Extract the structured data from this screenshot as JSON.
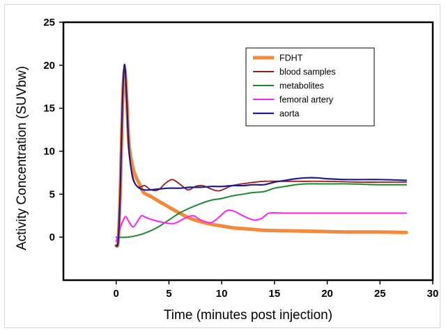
{
  "chart_data": {
    "type": "line",
    "title": "",
    "xlabel": "Time (minutes post injection)",
    "ylabel": "Activity Concentration (SUVbw)",
    "xlim": [
      -5,
      30
    ],
    "ylim": [
      -5,
      25
    ],
    "x_ticks": [
      0,
      5,
      10,
      15,
      20,
      25,
      30
    ],
    "y_ticks": [
      0,
      5,
      10,
      15,
      20,
      25
    ],
    "grid": false,
    "legend_position": "top-right",
    "series": [
      {
        "name": "FDHT",
        "color": "#f4893c",
        "width": 5,
        "points": [
          [
            0,
            -1
          ],
          [
            0.2,
            -0.3
          ],
          [
            0.4,
            6
          ],
          [
            0.6,
            15.5
          ],
          [
            0.8,
            19.5
          ],
          [
            1.0,
            16
          ],
          [
            1.2,
            11
          ],
          [
            1.5,
            8.5
          ],
          [
            1.8,
            7.2
          ],
          [
            2.2,
            6.2
          ],
          [
            2.6,
            5.2
          ],
          [
            3.2,
            4.8
          ],
          [
            4,
            4.2
          ],
          [
            5,
            3.5
          ],
          [
            6,
            2.8
          ],
          [
            7,
            2.2
          ],
          [
            8,
            1.8
          ],
          [
            9,
            1.5
          ],
          [
            10,
            1.3
          ],
          [
            11,
            1.1
          ],
          [
            12,
            1.0
          ],
          [
            13,
            0.9
          ],
          [
            14,
            0.8
          ],
          [
            16,
            0.75
          ],
          [
            18,
            0.7
          ],
          [
            20,
            0.65
          ],
          [
            22,
            0.6
          ],
          [
            25,
            0.6
          ],
          [
            27.5,
            0.55
          ]
        ]
      },
      {
        "name": "blood samples",
        "color": "#9b1b1b",
        "width": 1.8,
        "points": [
          [
            0,
            -1
          ],
          [
            0.2,
            -0.3
          ],
          [
            0.4,
            6
          ],
          [
            0.6,
            16
          ],
          [
            0.8,
            20
          ],
          [
            1.0,
            15.5
          ],
          [
            1.2,
            10
          ],
          [
            1.5,
            7.5
          ],
          [
            1.8,
            6.2
          ],
          [
            2.2,
            5.8
          ],
          [
            2.7,
            6.0
          ],
          [
            3.3,
            5.5
          ],
          [
            4,
            5.5
          ],
          [
            4.6,
            6.2
          ],
          [
            5.3,
            6.7
          ],
          [
            6,
            6.2
          ],
          [
            6.8,
            5.5
          ],
          [
            7.5,
            5.9
          ],
          [
            8.2,
            6.0
          ],
          [
            9,
            5.6
          ],
          [
            9.8,
            5.4
          ],
          [
            11,
            6.0
          ],
          [
            12.5,
            6.3
          ],
          [
            14,
            6.5
          ],
          [
            16,
            6.5
          ],
          [
            18,
            6.5
          ],
          [
            20,
            6.5
          ],
          [
            23,
            6.4
          ],
          [
            25,
            6.4
          ],
          [
            27.5,
            6.4
          ]
        ]
      },
      {
        "name": "metabolites",
        "color": "#1a8a2a",
        "width": 2,
        "points": [
          [
            0,
            0
          ],
          [
            1,
            0
          ],
          [
            2,
            0.2
          ],
          [
            3,
            0.6
          ],
          [
            4,
            1.2
          ],
          [
            5,
            2.0
          ],
          [
            6,
            2.8
          ],
          [
            7,
            3.4
          ],
          [
            8,
            3.9
          ],
          [
            9,
            4.3
          ],
          [
            10,
            4.5
          ],
          [
            11,
            4.8
          ],
          [
            12,
            5.0
          ],
          [
            13,
            5.2
          ],
          [
            14,
            5.3
          ],
          [
            15,
            5.7
          ],
          [
            16,
            5.9
          ],
          [
            17,
            6.1
          ],
          [
            18,
            6.2
          ],
          [
            20,
            6.2
          ],
          [
            22,
            6.2
          ],
          [
            25,
            6.1
          ],
          [
            27.5,
            6.1
          ]
        ]
      },
      {
        "name": "femoral artery",
        "color": "#ff22ff",
        "width": 2,
        "points": [
          [
            0,
            -0.5
          ],
          [
            0.3,
            0.8
          ],
          [
            0.6,
            1.8
          ],
          [
            0.9,
            2.4
          ],
          [
            1.2,
            1.8
          ],
          [
            1.6,
            1.2
          ],
          [
            2.0,
            1.8
          ],
          [
            2.4,
            2.5
          ],
          [
            2.8,
            2.3
          ],
          [
            3.5,
            2.0
          ],
          [
            4.5,
            1.7
          ],
          [
            5.5,
            1.6
          ],
          [
            6.5,
            2.2
          ],
          [
            7.3,
            2.5
          ],
          [
            8,
            2.0
          ],
          [
            9,
            1.7
          ],
          [
            9.8,
            2.4
          ],
          [
            10.5,
            3.1
          ],
          [
            11.2,
            3.0
          ],
          [
            12,
            2.5
          ],
          [
            13,
            2.0
          ],
          [
            13.8,
            2.2
          ],
          [
            14.5,
            2.8
          ],
          [
            16,
            2.8
          ],
          [
            20,
            2.8
          ],
          [
            25,
            2.8
          ],
          [
            27.5,
            2.8
          ]
        ]
      },
      {
        "name": "aorta",
        "color": "#1c1c8c",
        "width": 2.2,
        "points": [
          [
            0,
            -1
          ],
          [
            0.2,
            -0.3
          ],
          [
            0.4,
            6
          ],
          [
            0.6,
            16
          ],
          [
            0.8,
            20.1
          ],
          [
            1.0,
            16
          ],
          [
            1.2,
            10.5
          ],
          [
            1.5,
            7.3
          ],
          [
            1.8,
            6.2
          ],
          [
            2.2,
            5.7
          ],
          [
            2.6,
            5.5
          ],
          [
            3.2,
            5.5
          ],
          [
            4,
            5.6
          ],
          [
            5,
            5.7
          ],
          [
            6,
            5.7
          ],
          [
            7,
            5.8
          ],
          [
            8,
            5.8
          ],
          [
            9,
            5.9
          ],
          [
            10,
            5.9
          ],
          [
            11,
            6.0
          ],
          [
            12,
            6.0
          ],
          [
            13,
            6.1
          ],
          [
            14,
            6.1
          ],
          [
            15,
            6.4
          ],
          [
            16,
            6.6
          ],
          [
            17,
            6.8
          ],
          [
            18,
            6.9
          ],
          [
            19,
            6.9
          ],
          [
            20,
            6.8
          ],
          [
            22,
            6.7
          ],
          [
            25,
            6.7
          ],
          [
            27.5,
            6.6
          ]
        ]
      }
    ]
  }
}
